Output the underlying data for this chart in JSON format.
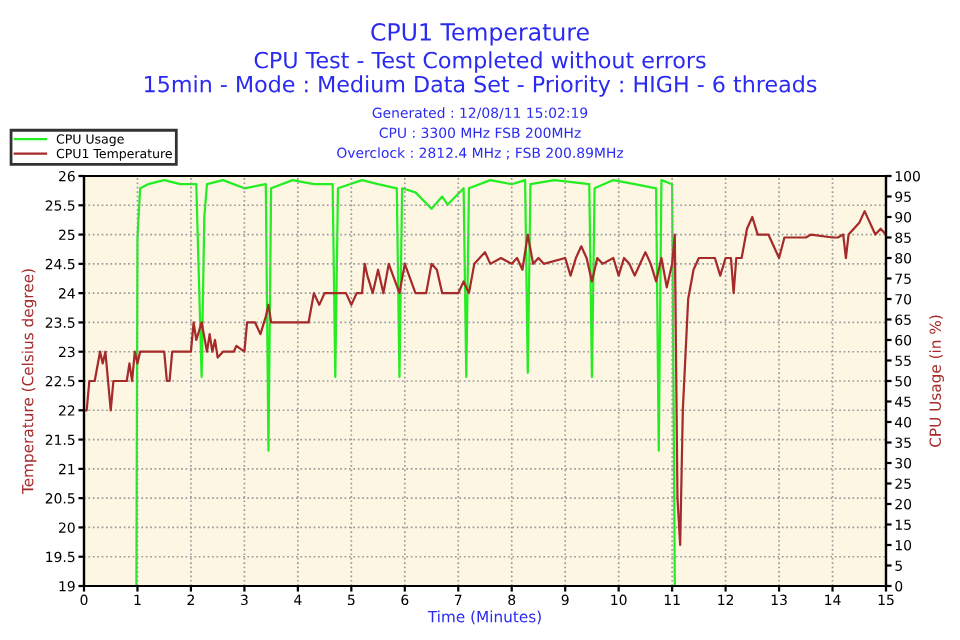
{
  "chart_data": {
    "type": "line",
    "title": "CPU1 Temperature",
    "subtitle": "CPU Test - Test Completed without errors\n15min - Mode : Medium Data Set - Priority : HIGH - 6 threads",
    "annotations": [
      "Generated : 12/08/11 15:02:19",
      "CPU : 3300 MHz FSB 200MHz",
      "Overclock : 2812.4 MHz ; FSB 200.89MHz"
    ],
    "xlabel": "Time (Minutes)",
    "ylabel": "Temperature (Celsius degree)",
    "y2label": "CPU Usage (in %)",
    "series": [
      {
        "name": "CPU Usage",
        "color": "#22ee22",
        "axis": "y2",
        "x": [
          0.98,
          1.0,
          1.05,
          1.2,
          1.5,
          1.8,
          2.1,
          2.2,
          2.25,
          2.3,
          2.6,
          3.0,
          3.4,
          3.45,
          3.5,
          3.9,
          4.3,
          4.65,
          4.7,
          4.75,
          5.2,
          5.5,
          5.85,
          5.9,
          5.95,
          6.2,
          6.5,
          6.7,
          6.8,
          7.1,
          7.15,
          7.2,
          7.6,
          8.0,
          8.25,
          8.3,
          8.35,
          8.8,
          9.45,
          9.5,
          9.55,
          9.9,
          10.3,
          10.7,
          10.75,
          10.8,
          11.0,
          11.05,
          11.1
        ],
        "values": [
          0,
          85,
          97,
          98,
          99,
          98,
          98,
          51,
          90,
          98,
          99,
          97,
          98,
          33,
          97,
          99,
          98,
          98,
          51,
          97,
          99,
          98,
          97,
          51,
          97,
          96,
          92,
          95,
          93,
          97,
          51,
          97,
          99,
          98,
          99,
          52,
          98,
          99,
          98,
          51,
          97,
          99,
          98,
          97,
          33,
          99,
          98,
          0,
          0
        ]
      },
      {
        "name": "CPU1 Temperature",
        "color": "#a52a2a",
        "axis": "y",
        "x": [
          0,
          0.05,
          0.1,
          0.2,
          0.3,
          0.35,
          0.4,
          0.45,
          0.5,
          0.55,
          0.6,
          0.8,
          0.85,
          0.9,
          0.95,
          1.0,
          1.05,
          1.1,
          1.5,
          1.55,
          1.6,
          1.65,
          2.0,
          2.05,
          2.1,
          2.2,
          2.3,
          2.35,
          2.4,
          2.45,
          2.5,
          2.6,
          2.7,
          2.8,
          2.85,
          3.0,
          3.05,
          3.2,
          3.3,
          3.4,
          3.45,
          3.5,
          4.2,
          4.3,
          4.4,
          4.5,
          4.9,
          5.0,
          5.1,
          5.2,
          5.25,
          5.3,
          5.4,
          5.5,
          5.6,
          5.7,
          5.9,
          6.0,
          6.2,
          6.4,
          6.5,
          6.6,
          6.7,
          7.0,
          7.1,
          7.2,
          7.3,
          7.5,
          7.6,
          7.8,
          8.0,
          8.1,
          8.2,
          8.3,
          8.4,
          8.5,
          8.6,
          9.0,
          9.1,
          9.2,
          9.3,
          9.4,
          9.5,
          9.6,
          9.7,
          9.9,
          10.0,
          10.1,
          10.2,
          10.3,
          10.5,
          10.6,
          10.7,
          10.8,
          10.9,
          11.0,
          11.05,
          11.1,
          11.15,
          11.2,
          11.3,
          11.4,
          11.5,
          11.8,
          11.9,
          12.0,
          12.1,
          12.15,
          12.2,
          12.3,
          12.4,
          12.5,
          12.6,
          12.8,
          12.9,
          13.0,
          13.1,
          13.5,
          13.6,
          14.0,
          14.1,
          14.2,
          14.25,
          14.3,
          14.5,
          14.6,
          14.8,
          14.9,
          15.0
        ],
        "values": [
          22,
          22,
          22.5,
          22.5,
          23,
          22.8,
          23,
          22.5,
          22,
          22.5,
          22.5,
          22.5,
          22.8,
          22.5,
          23,
          22.8,
          23,
          23,
          23,
          22.5,
          22.5,
          23,
          23,
          23.5,
          23.2,
          23.5,
          23,
          23.3,
          23,
          23.2,
          22.9,
          23,
          23,
          23,
          23.1,
          23,
          23.5,
          23.5,
          23.3,
          23.6,
          23.8,
          23.5,
          23.5,
          24,
          23.8,
          24,
          24,
          23.8,
          24,
          24,
          24.5,
          24.3,
          24,
          24.4,
          24,
          24.5,
          24,
          24.5,
          24,
          24,
          24.5,
          24.4,
          24,
          24,
          24.2,
          24,
          24.5,
          24.7,
          24.5,
          24.6,
          24.5,
          24.6,
          24.4,
          25,
          24.5,
          24.6,
          24.5,
          24.6,
          24.3,
          24.6,
          24.8,
          24.6,
          24.2,
          24.6,
          24.5,
          24.6,
          24.3,
          24.6,
          24.5,
          24.3,
          24.7,
          24.5,
          24.2,
          24.6,
          24.1,
          24.5,
          25,
          20.5,
          19.7,
          22,
          23.9,
          24.4,
          24.6,
          24.6,
          24.3,
          24.6,
          24.6,
          24,
          24.6,
          24.6,
          25.1,
          25.3,
          25,
          25,
          24.8,
          24.6,
          24.95,
          24.95,
          25,
          24.95,
          24.95,
          25,
          24.6,
          25,
          25.2,
          25.4,
          25,
          25.1,
          25
        ]
      }
    ],
    "xlim": [
      0,
      15
    ],
    "xticks": [
      0,
      1,
      2,
      3,
      4,
      5,
      6,
      7,
      8,
      9,
      10,
      11,
      12,
      13,
      14,
      15
    ],
    "ylim": [
      19,
      26
    ],
    "yticks": [
      19,
      19.5,
      20,
      20.5,
      21,
      21.5,
      22,
      22.5,
      23,
      23.5,
      24,
      24.5,
      25,
      25.5,
      26
    ],
    "y2lim": [
      0,
      100
    ],
    "y2ticks": [
      0,
      5,
      10,
      15,
      20,
      25,
      30,
      35,
      40,
      45,
      50,
      55,
      60,
      65,
      70,
      75,
      80,
      85,
      90,
      95,
      100
    ],
    "grid": true,
    "legend": "top left",
    "line_style": "solid",
    "marker": "none"
  }
}
